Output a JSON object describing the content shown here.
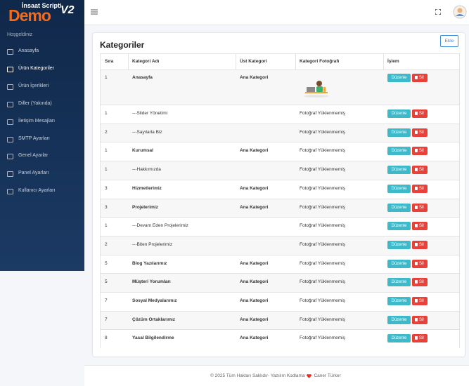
{
  "logo": {
    "title": "İnsaat Scripti",
    "brand": "Demo",
    "version": "V2"
  },
  "sidebar": {
    "greeting": "Hoşgeldiniz",
    "items": [
      "Anasayfa",
      "Ürün Kategoriler",
      "Ürün İçerikleri",
      "Diller (Yakında)",
      "İletişim Mesajları",
      "SMTP Ayarları",
      "Genel Ayarlar",
      "Panel Ayarları",
      "Kullanıcı Ayarları"
    ],
    "active": 1
  },
  "card": {
    "title": "Kategoriler",
    "add_button": "Ekle"
  },
  "table": {
    "headers": [
      "Sıra",
      "Kategori Adı",
      "Üst Kategori",
      "Kategori Fotoğrafı",
      "İşlem"
    ],
    "rows": [
      [
        1,
        "Anasayfa",
        "Ana Kategori",
        null
      ],
      [
        1,
        "---Slider Yönetimi",
        null,
        "Fotoğraf Yüklenmemiş"
      ],
      [
        2,
        "---Sayılarla Biz",
        null,
        "Fotoğraf Yüklenmemiş"
      ],
      [
        1,
        "Kurumsal",
        "Ana Kategori",
        "Fotoğraf Yüklenmemiş"
      ],
      [
        1,
        "---Hakkımızda",
        null,
        "Fotoğraf Yüklenmemiş"
      ],
      [
        3,
        "Hizmetlerimiz",
        "Ana Kategori",
        "Fotoğraf Yüklenmemiş"
      ],
      [
        3,
        "Projelerimiz",
        "Ana Kategori",
        "Fotoğraf Yüklenmemiş"
      ],
      [
        1,
        "---Devam Eden Projelerimiz",
        null,
        "Fotoğraf Yüklenmemiş"
      ],
      [
        2,
        "---Biten Projelerimiz",
        null,
        "Fotoğraf Yüklenmemiş"
      ],
      [
        5,
        "Blog Yazılarımız",
        "Ana Kategori",
        "Fotoğraf Yüklenmemiş"
      ],
      [
        5,
        "Müşteri Yorumları",
        "Ana Kategori",
        "Fotoğraf Yüklenmemiş"
      ],
      [
        7,
        "Sosyal Medyalarımız",
        "Ana Kategori",
        "Fotoğraf Yüklenmemiş"
      ],
      [
        7,
        "Çözüm Ortaklarımız",
        "Ana Kategori",
        "Fotoğraf Yüklenmemiş"
      ],
      [
        8,
        "Yasal Bilgilendirme",
        "Ana Kategori",
        "Fotoğraf Yüklenmemiş"
      ]
    ],
    "actions": {
      "edit": "Düzenle",
      "delete": "Sil"
    }
  },
  "footer": {
    "text": "© 2025 Tüm Hakları Saklıdır- Yazılım Kodlama",
    "author": "Caner Türker"
  }
}
